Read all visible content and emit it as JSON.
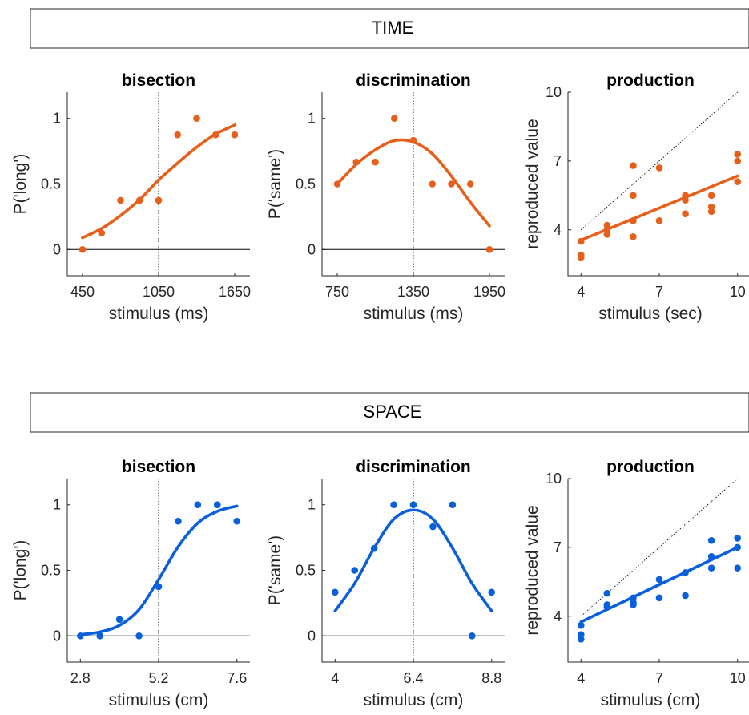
{
  "colors": {
    "time": "#E6601C",
    "space": "#0A5FDB"
  },
  "sections": [
    {
      "label": "TIME"
    },
    {
      "label": "SPACE"
    }
  ],
  "chart_data": [
    {
      "type": "scatter",
      "row": 0,
      "panel": "bisection",
      "title": "bisection",
      "xlabel": "stimulus (ms)",
      "ylabel": "P('long')",
      "xlim": [
        330,
        1770
      ],
      "ylim": [
        -0.2,
        1.2
      ],
      "xticks": [
        450,
        1050,
        1650
      ],
      "yticks": [
        0,
        0.5,
        1
      ],
      "ytick_labels": [
        "0",
        "0.5",
        "1"
      ],
      "vline": 1050,
      "hline": 0,
      "points": [
        [
          450,
          0
        ],
        [
          600,
          0.125
        ],
        [
          750,
          0.375
        ],
        [
          900,
          0.375
        ],
        [
          1050,
          0.375
        ],
        [
          1200,
          0.875
        ],
        [
          1350,
          1
        ],
        [
          1500,
          0.875
        ],
        [
          1650,
          0.875
        ]
      ],
      "fit": [
        [
          450,
          0.09
        ],
        [
          600,
          0.16
        ],
        [
          750,
          0.26
        ],
        [
          900,
          0.38
        ],
        [
          1050,
          0.53
        ],
        [
          1200,
          0.66
        ],
        [
          1350,
          0.78
        ],
        [
          1500,
          0.88
        ],
        [
          1650,
          0.95
        ]
      ]
    },
    {
      "type": "scatter",
      "row": 0,
      "panel": "discrimination",
      "title": "discrimination",
      "xlabel": "stimulus (ms)",
      "ylabel": "P('same')",
      "xlim": [
        630,
        2070
      ],
      "ylim": [
        -0.2,
        1.2
      ],
      "xticks": [
        750,
        1350,
        1950
      ],
      "yticks": [
        0,
        0.5,
        1
      ],
      "ytick_labels": [
        "0",
        "0.5",
        "1"
      ],
      "vline": 1350,
      "hline": 0,
      "points": [
        [
          750,
          0.5
        ],
        [
          900,
          0.667
        ],
        [
          1050,
          0.667
        ],
        [
          1200,
          1
        ],
        [
          1350,
          0.833
        ],
        [
          1500,
          0.5
        ],
        [
          1650,
          0.5
        ],
        [
          1800,
          0.5
        ],
        [
          1950,
          0
        ]
      ],
      "fit": [
        [
          750,
          0.5
        ],
        [
          900,
          0.65
        ],
        [
          1050,
          0.76
        ],
        [
          1200,
          0.83
        ],
        [
          1350,
          0.82
        ],
        [
          1500,
          0.73
        ],
        [
          1650,
          0.56
        ],
        [
          1800,
          0.36
        ],
        [
          1950,
          0.18
        ]
      ]
    },
    {
      "type": "scatter",
      "row": 0,
      "panel": "production",
      "title": "production",
      "xlabel": "stimulus (sec)",
      "ylabel": "reproduced value",
      "xlim": [
        3.5,
        10.5
      ],
      "ylim": [
        2,
        10
      ],
      "xticks": [
        4,
        7,
        10
      ],
      "yticks": [
        4,
        7,
        10
      ],
      "ytick_labels": [
        "4",
        "7",
        "10"
      ],
      "diagonal": [
        4,
        10
      ],
      "points": [
        [
          4,
          3.5
        ],
        [
          4,
          2.9
        ],
        [
          4,
          2.8
        ],
        [
          5,
          4.2
        ],
        [
          5,
          4
        ],
        [
          5,
          3.8
        ],
        [
          6,
          6.8
        ],
        [
          6,
          5.5
        ],
        [
          6,
          4.4
        ],
        [
          6,
          3.7
        ],
        [
          7,
          6.7
        ],
        [
          7,
          4.4
        ],
        [
          8,
          5.5
        ],
        [
          8,
          5.3
        ],
        [
          8,
          4.7
        ],
        [
          9,
          5.5
        ],
        [
          9,
          5
        ],
        [
          9,
          4.8
        ],
        [
          10,
          7.3
        ],
        [
          10,
          7
        ],
        [
          10,
          6.1
        ]
      ],
      "fit": [
        [
          4,
          3.55
        ],
        [
          10,
          6.35
        ]
      ]
    },
    {
      "type": "scatter",
      "row": 1,
      "panel": "bisection",
      "title": "bisection",
      "xlabel": "stimulus (cm)",
      "ylabel": "P('long')",
      "xlim": [
        2.4,
        8.0
      ],
      "ylim": [
        -0.2,
        1.2
      ],
      "xticks": [
        2.8,
        5.2,
        7.6
      ],
      "yticks": [
        0,
        0.5,
        1
      ],
      "ytick_labels": [
        "0",
        "0.5",
        "1"
      ],
      "vline": 5.2,
      "hline": 0,
      "points": [
        [
          2.8,
          0
        ],
        [
          3.4,
          0
        ],
        [
          4.0,
          0.125
        ],
        [
          4.6,
          0
        ],
        [
          5.2,
          0.375
        ],
        [
          5.8,
          0.875
        ],
        [
          6.4,
          1
        ],
        [
          7.0,
          1
        ],
        [
          7.6,
          0.875
        ]
      ],
      "fit": [
        [
          2.8,
          0.01
        ],
        [
          3.4,
          0.03
        ],
        [
          4.0,
          0.08
        ],
        [
          4.6,
          0.2
        ],
        [
          5.2,
          0.43
        ],
        [
          5.8,
          0.68
        ],
        [
          6.4,
          0.86
        ],
        [
          7.0,
          0.95
        ],
        [
          7.6,
          0.99
        ]
      ]
    },
    {
      "type": "scatter",
      "row": 1,
      "panel": "discrimination",
      "title": "discrimination",
      "xlabel": "stimulus (cm)",
      "ylabel": "P('same')",
      "xlim": [
        3.6,
        9.2
      ],
      "ylim": [
        -0.2,
        1.2
      ],
      "xticks": [
        4,
        6.4,
        8.8
      ],
      "yticks": [
        0,
        0.5,
        1
      ],
      "ytick_labels": [
        "0",
        "0.5",
        "1"
      ],
      "vline": 6.4,
      "hline": 0,
      "points": [
        [
          4.0,
          0.333
        ],
        [
          4.6,
          0.5
        ],
        [
          5.2,
          0.667
        ],
        [
          5.8,
          1
        ],
        [
          6.4,
          1
        ],
        [
          7.0,
          0.833
        ],
        [
          7.6,
          1
        ],
        [
          8.2,
          0
        ],
        [
          8.8,
          0.333
        ]
      ],
      "fit": [
        [
          4.0,
          0.19
        ],
        [
          4.6,
          0.4
        ],
        [
          5.2,
          0.67
        ],
        [
          5.8,
          0.89
        ],
        [
          6.4,
          0.96
        ],
        [
          7.0,
          0.89
        ],
        [
          7.6,
          0.67
        ],
        [
          8.2,
          0.4
        ],
        [
          8.8,
          0.19
        ]
      ]
    },
    {
      "type": "scatter",
      "row": 1,
      "panel": "production",
      "title": "production",
      "xlabel": "stimulus (cm)",
      "ylabel": "reproduced value",
      "xlim": [
        3.5,
        10.5
      ],
      "ylim": [
        2,
        10
      ],
      "xticks": [
        4,
        7,
        10
      ],
      "yticks": [
        4,
        7,
        10
      ],
      "ytick_labels": [
        "4",
        "7",
        "10"
      ],
      "diagonal": [
        4,
        10
      ],
      "points": [
        [
          4,
          3.6
        ],
        [
          4,
          3.2
        ],
        [
          4,
          3
        ],
        [
          5,
          5
        ],
        [
          5,
          4.5
        ],
        [
          5,
          4.4
        ],
        [
          6,
          4.8
        ],
        [
          6,
          4.6
        ],
        [
          6,
          4.5
        ],
        [
          7,
          5.6
        ],
        [
          7,
          4.8
        ],
        [
          8,
          5.9
        ],
        [
          8,
          4.9
        ],
        [
          9,
          7.3
        ],
        [
          9,
          6.6
        ],
        [
          9,
          6.1
        ],
        [
          10,
          7.4
        ],
        [
          10,
          7
        ],
        [
          10,
          6.1
        ]
      ],
      "fit": [
        [
          4,
          3.75
        ],
        [
          10,
          7.0
        ]
      ]
    }
  ]
}
